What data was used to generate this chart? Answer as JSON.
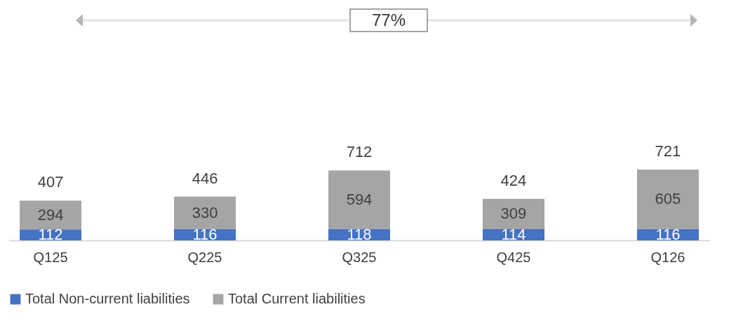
{
  "chart_data": {
    "type": "bar",
    "stacked": true,
    "categories": [
      "Q125",
      "Q225",
      "Q325",
      "Q425",
      "Q126"
    ],
    "series": [
      {
        "name": "Total Non-current liabilities",
        "color": "#4472c4",
        "values": [
          112,
          116,
          118,
          114,
          116
        ]
      },
      {
        "name": "Total Current liabilities",
        "color": "#a5a5a5",
        "values": [
          294,
          330,
          594,
          309,
          605
        ]
      }
    ],
    "totals": [
      "407",
      "446",
      "712",
      "424",
      "721"
    ],
    "data_labels": true,
    "legend": "bottom",
    "grid": false,
    "annotations": [
      "77%"
    ]
  }
}
